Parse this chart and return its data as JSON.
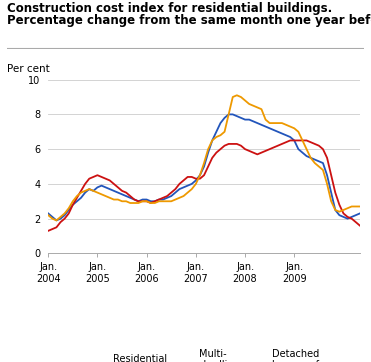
{
  "title_line1": "Construction cost index for residential buildings.",
  "title_line2": "Percentage change from the same month one year before",
  "ylabel": "Per cent",
  "ylim": [
    0,
    10
  ],
  "yticks": [
    0,
    2,
    4,
    6,
    8,
    10
  ],
  "colors": {
    "residential": "#2255bb",
    "multi": "#cc1111",
    "detached": "#ee9900"
  },
  "jan_ticks": [
    0,
    12,
    24,
    36,
    48,
    60
  ],
  "jan_labels": [
    "Jan.\n2004",
    "Jan.\n2005",
    "Jan.\n2006",
    "Jan.\n2007",
    "Jan.\n2008",
    "Jan.\n2009"
  ],
  "residential": [
    2.3,
    2.1,
    1.9,
    2.0,
    2.2,
    2.5,
    2.8,
    3.0,
    3.2,
    3.5,
    3.7,
    3.6,
    3.8,
    3.9,
    3.8,
    3.7,
    3.6,
    3.5,
    3.4,
    3.3,
    3.2,
    3.1,
    3.0,
    3.1,
    3.1,
    3.0,
    3.0,
    3.1,
    3.1,
    3.2,
    3.3,
    3.5,
    3.7,
    3.8,
    3.9,
    4.0,
    4.2,
    4.5,
    5.0,
    5.8,
    6.5,
    7.0,
    7.5,
    7.8,
    8.0,
    8.0,
    7.9,
    7.8,
    7.7,
    7.7,
    7.6,
    7.5,
    7.4,
    7.3,
    7.2,
    7.1,
    7.0,
    6.9,
    6.8,
    6.7,
    6.5,
    6.0,
    5.8,
    5.6,
    5.5,
    5.4,
    5.3,
    5.2,
    4.5,
    3.5,
    2.5,
    2.2,
    2.1,
    2.0,
    2.1,
    2.2,
    2.3
  ],
  "multi": [
    1.3,
    1.4,
    1.5,
    1.8,
    2.0,
    2.3,
    2.8,
    3.2,
    3.6,
    4.0,
    4.3,
    4.4,
    4.5,
    4.4,
    4.3,
    4.2,
    4.0,
    3.8,
    3.6,
    3.5,
    3.3,
    3.1,
    3.0,
    3.0,
    3.0,
    2.9,
    3.0,
    3.1,
    3.2,
    3.3,
    3.5,
    3.7,
    4.0,
    4.2,
    4.4,
    4.4,
    4.3,
    4.3,
    4.5,
    5.0,
    5.5,
    5.8,
    6.0,
    6.2,
    6.3,
    6.3,
    6.3,
    6.2,
    6.0,
    5.9,
    5.8,
    5.7,
    5.8,
    5.9,
    6.0,
    6.1,
    6.2,
    6.3,
    6.4,
    6.5,
    6.5,
    6.5,
    6.5,
    6.5,
    6.4,
    6.3,
    6.2,
    6.0,
    5.5,
    4.5,
    3.5,
    2.8,
    2.3,
    2.1,
    2.0,
    1.8,
    1.6
  ],
  "detached": [
    2.2,
    2.0,
    1.9,
    2.1,
    2.3,
    2.6,
    3.0,
    3.3,
    3.5,
    3.6,
    3.7,
    3.6,
    3.5,
    3.4,
    3.3,
    3.2,
    3.1,
    3.1,
    3.0,
    3.0,
    2.9,
    2.9,
    2.9,
    3.0,
    3.0,
    2.9,
    2.9,
    3.0,
    3.0,
    3.0,
    3.0,
    3.1,
    3.2,
    3.3,
    3.5,
    3.7,
    4.0,
    4.5,
    5.2,
    6.0,
    6.5,
    6.7,
    6.8,
    7.0,
    8.0,
    9.0,
    9.1,
    9.0,
    8.8,
    8.6,
    8.5,
    8.4,
    8.3,
    7.7,
    7.5,
    7.5,
    7.5,
    7.5,
    7.4,
    7.3,
    7.2,
    7.0,
    6.5,
    6.0,
    5.5,
    5.2,
    5.0,
    4.8,
    4.0,
    3.0,
    2.5,
    2.4,
    2.5,
    2.6,
    2.7,
    2.7,
    2.7
  ]
}
